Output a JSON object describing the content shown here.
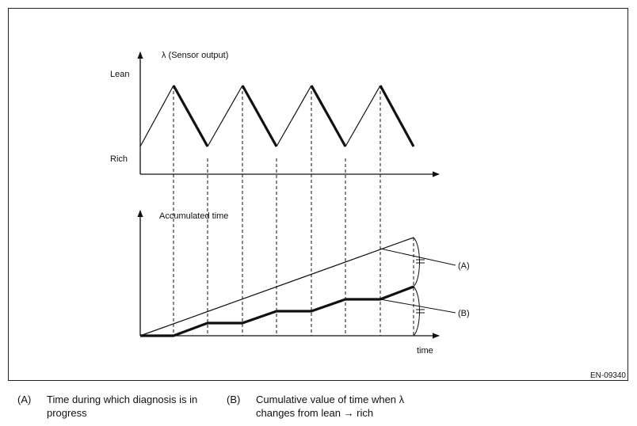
{
  "top_chart": {
    "y_axis_label": "λ  (Sensor output)",
    "y_high_label": "Lean",
    "y_low_label": "Rich"
  },
  "bottom_chart": {
    "y_axis_label": "Accumulated time",
    "x_axis_label": "time",
    "line_a_label": "(A)",
    "line_b_label": "(B)"
  },
  "figure_code": "EN-09340",
  "legend": [
    {
      "key": "(A)",
      "text": "Time during which diagnosis is in\nprogress"
    },
    {
      "key": "(B)",
      "text": "Cumulative value of time when λ\nchanges from lean → rich"
    }
  ],
  "chart_data": [
    {
      "type": "line",
      "title": "",
      "ylabel": "λ  (Sensor output)",
      "y_levels": [
        "Rich",
        "Lean"
      ],
      "series": [
        {
          "name": "",
          "x": [
            0,
            1,
            2,
            3,
            4,
            5,
            6,
            7,
            8
          ],
          "y": [
            "Rich",
            "Lean",
            "Rich",
            "Lean",
            "Rich",
            "Lean",
            "Rich",
            "Lean",
            "Rich"
          ]
        }
      ]
    },
    {
      "type": "line",
      "title": "",
      "xlabel": "time",
      "ylabel": "Accumulated time",
      "series": [
        {
          "name": "(A)",
          "x": [
            0,
            8
          ],
          "y": [
            0,
            1
          ]
        },
        {
          "name": "(B)",
          "x": [
            0,
            1,
            2,
            3,
            4,
            5,
            6,
            7,
            8
          ],
          "y": [
            0,
            0,
            0.125,
            0.125,
            0.25,
            0.25,
            0.375,
            0.375,
            0.5
          ]
        }
      ]
    }
  ]
}
